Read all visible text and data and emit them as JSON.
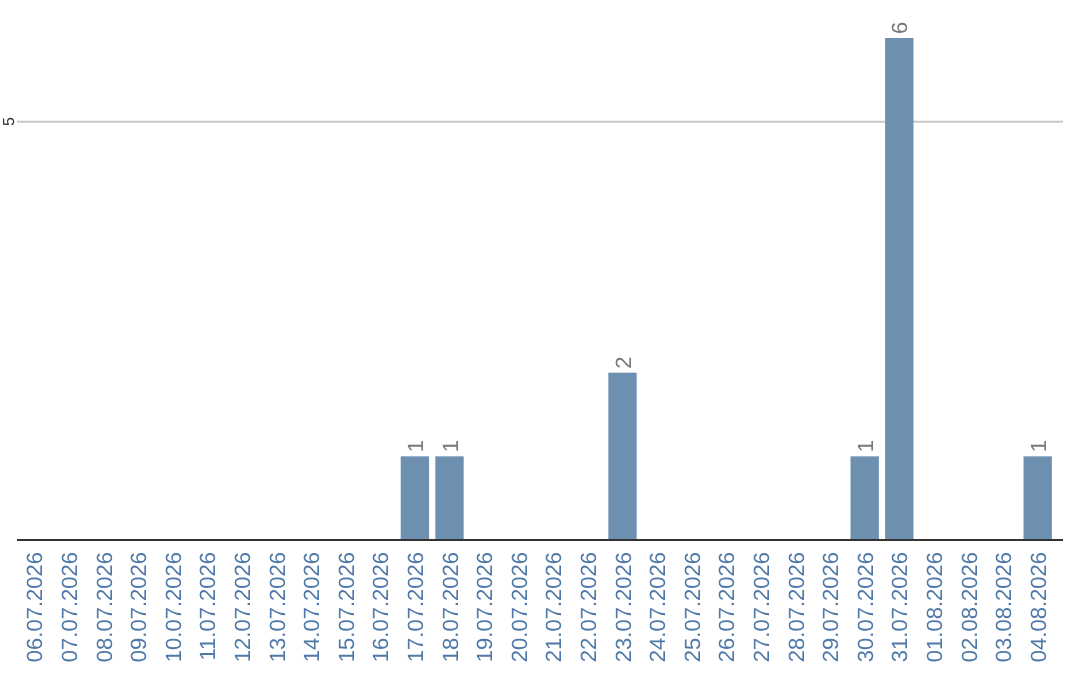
{
  "chart_data": {
    "type": "bar",
    "categories": [
      "06.07.2026",
      "07.07.2026",
      "08.07.2026",
      "09.07.2026",
      "10.07.2026",
      "11.07.2026",
      "12.07.2026",
      "13.07.2026",
      "14.07.2026",
      "15.07.2026",
      "16.07.2026",
      "17.07.2026",
      "18.07.2026",
      "19.07.2026",
      "20.07.2026",
      "21.07.2026",
      "22.07.2026",
      "23.07.2026",
      "24.07.2026",
      "25.07.2026",
      "26.07.2026",
      "27.07.2026",
      "28.07.2026",
      "29.07.2026",
      "30.07.2026",
      "31.07.2026",
      "01.08.2026",
      "02.08.2026",
      "03.08.2026",
      "04.08.2026"
    ],
    "values": [
      0,
      0,
      0,
      0,
      0,
      0,
      0,
      0,
      0,
      0,
      0,
      1,
      1,
      0,
      0,
      0,
      0,
      2,
      0,
      0,
      0,
      0,
      0,
      0,
      1,
      6,
      0,
      0,
      0,
      1
    ],
    "value_labels": [
      null,
      null,
      null,
      null,
      null,
      null,
      null,
      null,
      null,
      null,
      null,
      "1",
      "1",
      null,
      null,
      null,
      null,
      "2",
      null,
      null,
      null,
      null,
      null,
      null,
      "1",
      "6",
      null,
      null,
      null,
      "1"
    ],
    "color": "#6d8fb0",
    "ref_lines": [
      {
        "axis": "y",
        "value": 5,
        "label": "5",
        "color": "#c8c8c8"
      }
    ]
  }
}
